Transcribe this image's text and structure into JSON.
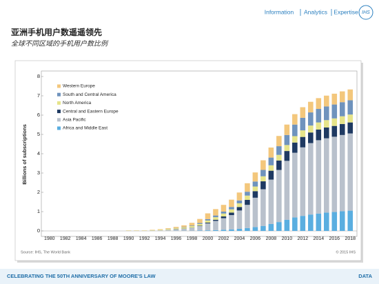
{
  "header": {
    "nav": [
      "Information",
      "Analytics",
      "Expertise"
    ],
    "logo": "IHS"
  },
  "footer": {
    "text": "CELEBRATING THE 50TH ANNIVERSARY OF MOORE'S LAW",
    "section": "DATA"
  },
  "chart_data": {
    "type": "stacked_bar",
    "title": "亚洲手机用户数遥遥领先",
    "subtitle": "全球不同区域的手机用户数比例",
    "y_label": "Billions of subscriptions",
    "source": "Source: IHS, The World Bank",
    "copyright": "© 2015 IHS",
    "legend": "upper left",
    "ylim": [
      0,
      8
    ],
    "yticks": [
      0,
      1,
      2,
      3,
      4,
      5,
      6,
      7,
      8
    ],
    "categories": [
      "1980",
      null,
      "1982",
      null,
      "1984",
      null,
      "1986",
      null,
      "1988",
      null,
      "1990",
      null,
      "1992",
      null,
      "1994",
      null,
      "1996",
      null,
      "1998",
      null,
      "2000",
      null,
      "2002",
      null,
      "2004",
      null,
      "2006",
      null,
      "2008",
      null,
      "2010",
      null,
      "2012",
      null,
      "2014",
      null,
      "2016",
      null,
      "2018"
    ],
    "series": [
      {
        "name": "Africa and Middle East",
        "color": "#5aaee0",
        "values": [
          0,
          0,
          0,
          0,
          0,
          0,
          0,
          0,
          0,
          0,
          0,
          0,
          0,
          0,
          0,
          0,
          0.01,
          0.01,
          0.01,
          0.02,
          0.03,
          0.04,
          0.06,
          0.08,
          0.11,
          0.15,
          0.2,
          0.26,
          0.36,
          0.46,
          0.58,
          0.7,
          0.78,
          0.85,
          0.9,
          0.95,
          0.98,
          1.02,
          1.05
        ]
      },
      {
        "name": "Asia Pacific",
        "color": "#b9c1cc",
        "values": [
          0,
          0,
          0,
          0,
          0,
          0,
          0,
          0,
          0,
          0,
          0.01,
          0.01,
          0.01,
          0.02,
          0.03,
          0.05,
          0.07,
          0.1,
          0.15,
          0.23,
          0.36,
          0.48,
          0.6,
          0.74,
          0.95,
          1.2,
          1.52,
          1.9,
          2.3,
          2.7,
          3.05,
          3.35,
          3.55,
          3.7,
          3.8,
          3.85,
          3.9,
          3.95,
          4.0
        ]
      },
      {
        "name": "Central and Eastern Europe",
        "color": "#1f3a62",
        "values": [
          0,
          0,
          0,
          0,
          0,
          0,
          0,
          0,
          0,
          0,
          0,
          0,
          0,
          0,
          0,
          0,
          0.01,
          0.01,
          0.01,
          0.02,
          0.04,
          0.06,
          0.09,
          0.13,
          0.18,
          0.26,
          0.34,
          0.41,
          0.46,
          0.49,
          0.51,
          0.53,
          0.54,
          0.55,
          0.55,
          0.56,
          0.56,
          0.57,
          0.57
        ]
      },
      {
        "name": "North America",
        "color": "#e6e48a",
        "values": [
          0,
          0,
          0,
          0,
          0,
          0,
          0,
          0,
          0,
          0,
          0.01,
          0.01,
          0.01,
          0.02,
          0.03,
          0.04,
          0.05,
          0.06,
          0.08,
          0.09,
          0.11,
          0.13,
          0.15,
          0.17,
          0.19,
          0.22,
          0.24,
          0.26,
          0.28,
          0.29,
          0.31,
          0.33,
          0.34,
          0.36,
          0.37,
          0.38,
          0.39,
          0.4,
          0.41
        ]
      },
      {
        "name": "South and Central America",
        "color": "#6f93bd",
        "values": [
          0,
          0,
          0,
          0,
          0,
          0,
          0,
          0,
          0,
          0,
          0,
          0,
          0,
          0,
          0,
          0.01,
          0.01,
          0.02,
          0.03,
          0.05,
          0.07,
          0.09,
          0.1,
          0.12,
          0.15,
          0.2,
          0.26,
          0.33,
          0.4,
          0.45,
          0.52,
          0.6,
          0.65,
          0.68,
          0.7,
          0.71,
          0.72,
          0.73,
          0.74
        ]
      },
      {
        "name": "Western Europe",
        "color": "#f3c77c",
        "values": [
          0,
          0,
          0,
          0,
          0,
          0,
          0,
          0,
          0,
          0,
          0.01,
          0.01,
          0.01,
          0.02,
          0.03,
          0.04,
          0.06,
          0.09,
          0.14,
          0.21,
          0.3,
          0.33,
          0.35,
          0.38,
          0.41,
          0.44,
          0.47,
          0.5,
          0.52,
          0.53,
          0.54,
          0.54,
          0.55,
          0.55,
          0.56,
          0.56,
          0.56,
          0.56,
          0.56
        ]
      }
    ]
  }
}
